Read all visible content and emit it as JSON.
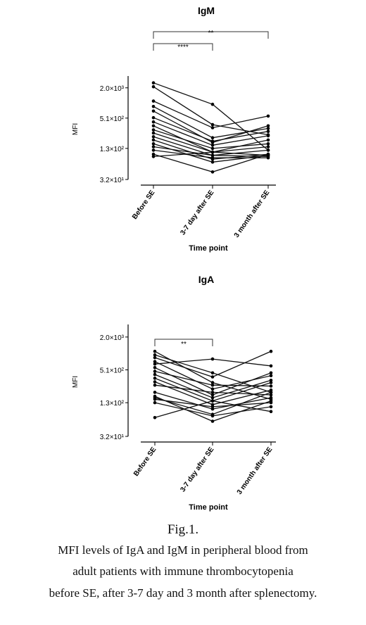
{
  "chart_data": [
    {
      "type": "line",
      "title": "IgM",
      "xlabel": "Time point",
      "ylabel": "MFI",
      "y_scale": "log",
      "ylim": [
        32,
        3000
      ],
      "yticks": [
        32,
        130,
        510,
        2000
      ],
      "ytick_labels": [
        "3.2×10¹",
        "1.3×10²",
        "5.1×10²",
        "2.0×10³"
      ],
      "categories": [
        "Before SE",
        "3-7 day after SE",
        "3 month after SE"
      ],
      "significance": [
        {
          "from": 0,
          "to": 1,
          "label": "****"
        },
        {
          "from": 0,
          "to": 2,
          "label": "**"
        }
      ],
      "series": [
        {
          "values": [
            2500,
            950,
            120
          ]
        },
        {
          "values": [
            2100,
            380,
            240
          ]
        },
        {
          "values": [
            1100,
            330,
            560
          ]
        },
        {
          "values": [
            860,
            210,
            320
          ]
        },
        {
          "values": [
            700,
            170,
            360
          ]
        },
        {
          "values": [
            520,
            180,
            280
          ]
        },
        {
          "values": [
            430,
            150,
            230
          ]
        },
        {
          "values": [
            360,
            110,
            190
          ]
        },
        {
          "values": [
            300,
            130,
            160
          ]
        },
        {
          "values": [
            260,
            110,
            140
          ]
        },
        {
          "values": [
            220,
            95,
            120
          ]
        },
        {
          "values": [
            190,
            80,
            100
          ]
        },
        {
          "values": [
            160,
            70,
            95
          ]
        },
        {
          "values": [
            140,
            95,
            90
          ]
        },
        {
          "values": [
            120,
            85,
            85
          ]
        },
        {
          "values": [
            100,
            45,
            100
          ]
        },
        {
          "values": [
            90,
            110,
            95
          ]
        }
      ]
    },
    {
      "type": "line",
      "title": "IgA",
      "xlabel": "Time point",
      "ylabel": "MFI",
      "y_scale": "log",
      "ylim": [
        32,
        3000
      ],
      "yticks": [
        32,
        130,
        510,
        2000
      ],
      "ytick_labels": [
        "3.2×10¹",
        "1.3×10²",
        "5.1×10²",
        "2.0×10³"
      ],
      "categories": [
        "Before SE",
        "3-7 day after SE",
        "3 month after SE"
      ],
      "significance": [
        {
          "from": 0,
          "to": 1,
          "label": "**"
        }
      ],
      "series": [
        {
          "values": [
            1100,
            300,
            150
          ]
        },
        {
          "values": [
            950,
            450,
            200
          ]
        },
        {
          "values": [
            850,
            380,
            1100
          ]
        },
        {
          "values": [
            720,
            230,
            400
          ]
        },
        {
          "values": [
            650,
            800,
            600
          ]
        },
        {
          "values": [
            560,
            180,
            450
          ]
        },
        {
          "values": [
            480,
            270,
            260
          ]
        },
        {
          "values": [
            420,
            160,
            330
          ]
        },
        {
          "values": [
            360,
            140,
            300
          ]
        },
        {
          "values": [
            310,
            120,
            220
          ]
        },
        {
          "values": [
            270,
            200,
            180
          ]
        },
        {
          "values": [
            200,
            100,
            160
          ]
        },
        {
          "values": [
            170,
            60,
            140
          ]
        },
        {
          "values": [
            160,
            80,
            200
          ]
        },
        {
          "values": [
            150,
            110,
            130
          ]
        },
        {
          "values": [
            130,
            75,
            110
          ]
        },
        {
          "values": [
            70,
            140,
            90
          ]
        }
      ]
    }
  ],
  "caption": {
    "figure": "Fig.1.",
    "line1": "MFI levels of IgA and IgM in peripheral blood from",
    "line2": "adult patients with immune thrombocytopenia",
    "line3": "before SE, after 3-7 day and 3 month after splenectomy."
  }
}
